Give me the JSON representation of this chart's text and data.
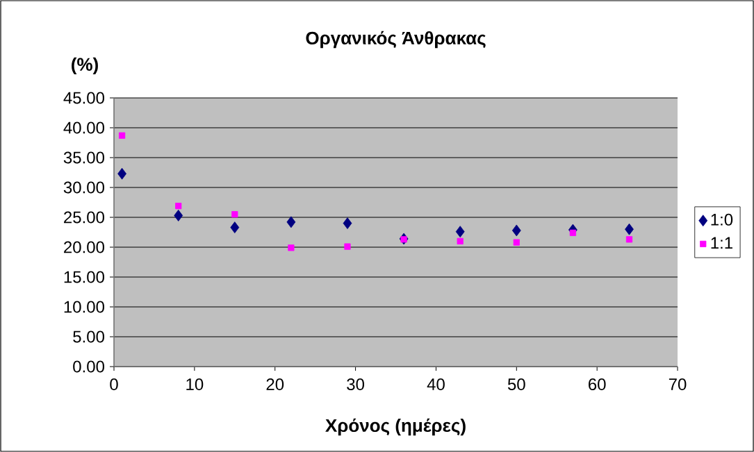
{
  "chart_data": {
    "type": "scatter",
    "title": "Οργανικός Άνθρακας",
    "ylabel": "(%)",
    "xlabel": "Χρόνος (ημέρες)",
    "x": [
      1,
      8,
      15,
      22,
      29,
      36,
      43,
      50,
      57,
      64
    ],
    "series": [
      {
        "name": "1:0",
        "color": "#000080",
        "marker": "diamond",
        "values": [
          32.3,
          25.3,
          23.3,
          24.2,
          24.0,
          21.4,
          22.6,
          22.8,
          22.9,
          23.0
        ]
      },
      {
        "name": "1:1",
        "color": "#ff00ff",
        "marker": "square",
        "values": [
          38.7,
          26.9,
          25.5,
          19.9,
          20.1,
          21.3,
          21.0,
          20.8,
          22.4,
          21.3
        ]
      }
    ],
    "xlim": [
      0,
      70
    ],
    "xticks": [
      0,
      10,
      20,
      30,
      40,
      50,
      60,
      70
    ],
    "ylim": [
      0,
      45
    ],
    "yticks": [
      {
        "value": 0,
        "label": "0.00"
      },
      {
        "value": 5,
        "label": "5.00"
      },
      {
        "value": 10,
        "label": "10.00"
      },
      {
        "value": 15,
        "label": "15.00"
      },
      {
        "value": 20,
        "label": "20.00"
      },
      {
        "value": 25,
        "label": "25.00"
      },
      {
        "value": 30,
        "label": "30.00"
      },
      {
        "value": 35,
        "label": "35.00"
      },
      {
        "value": 40,
        "label": "40.00"
      },
      {
        "value": 45,
        "label": "45.00"
      }
    ],
    "grid": "y",
    "legend": "right"
  }
}
